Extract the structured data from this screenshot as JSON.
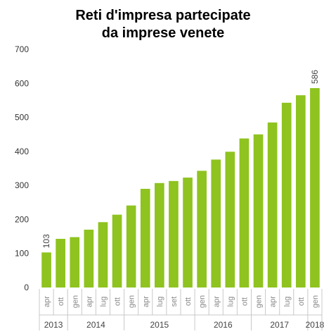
{
  "chart_data": {
    "type": "bar",
    "title": [
      "Reti d'impresa partecipate",
      "da imprese venete"
    ],
    "categories": [
      "apr",
      "ott",
      "gen",
      "apr",
      "lug",
      "ott",
      "gen",
      "apr",
      "lug",
      "set",
      "ott",
      "gen",
      "apr",
      "lug",
      "ott",
      "gen",
      "apr",
      "lug",
      "ott",
      "gen"
    ],
    "x_groups": [
      {
        "label": "2013",
        "size": 2
      },
      {
        "label": "2014",
        "size": 4
      },
      {
        "label": "2015",
        "size": 5
      },
      {
        "label": "2016",
        "size": 4
      },
      {
        "label": "2017",
        "size": 4
      },
      {
        "label": "2018",
        "size": 1
      }
    ],
    "values": [
      103,
      143,
      148,
      170,
      192,
      214,
      241,
      290,
      307,
      313,
      323,
      343,
      376,
      399,
      438,
      450,
      485,
      543,
      565,
      586
    ],
    "value_labels": [
      "103",
      null,
      null,
      null,
      null,
      null,
      null,
      null,
      null,
      null,
      null,
      null,
      null,
      null,
      null,
      null,
      null,
      null,
      null,
      "586"
    ],
    "color": "#8fc31f",
    "ylim": [
      0,
      700
    ],
    "yticks": [
      0,
      100,
      200,
      300,
      400,
      500,
      600,
      700
    ],
    "grid": false
  }
}
